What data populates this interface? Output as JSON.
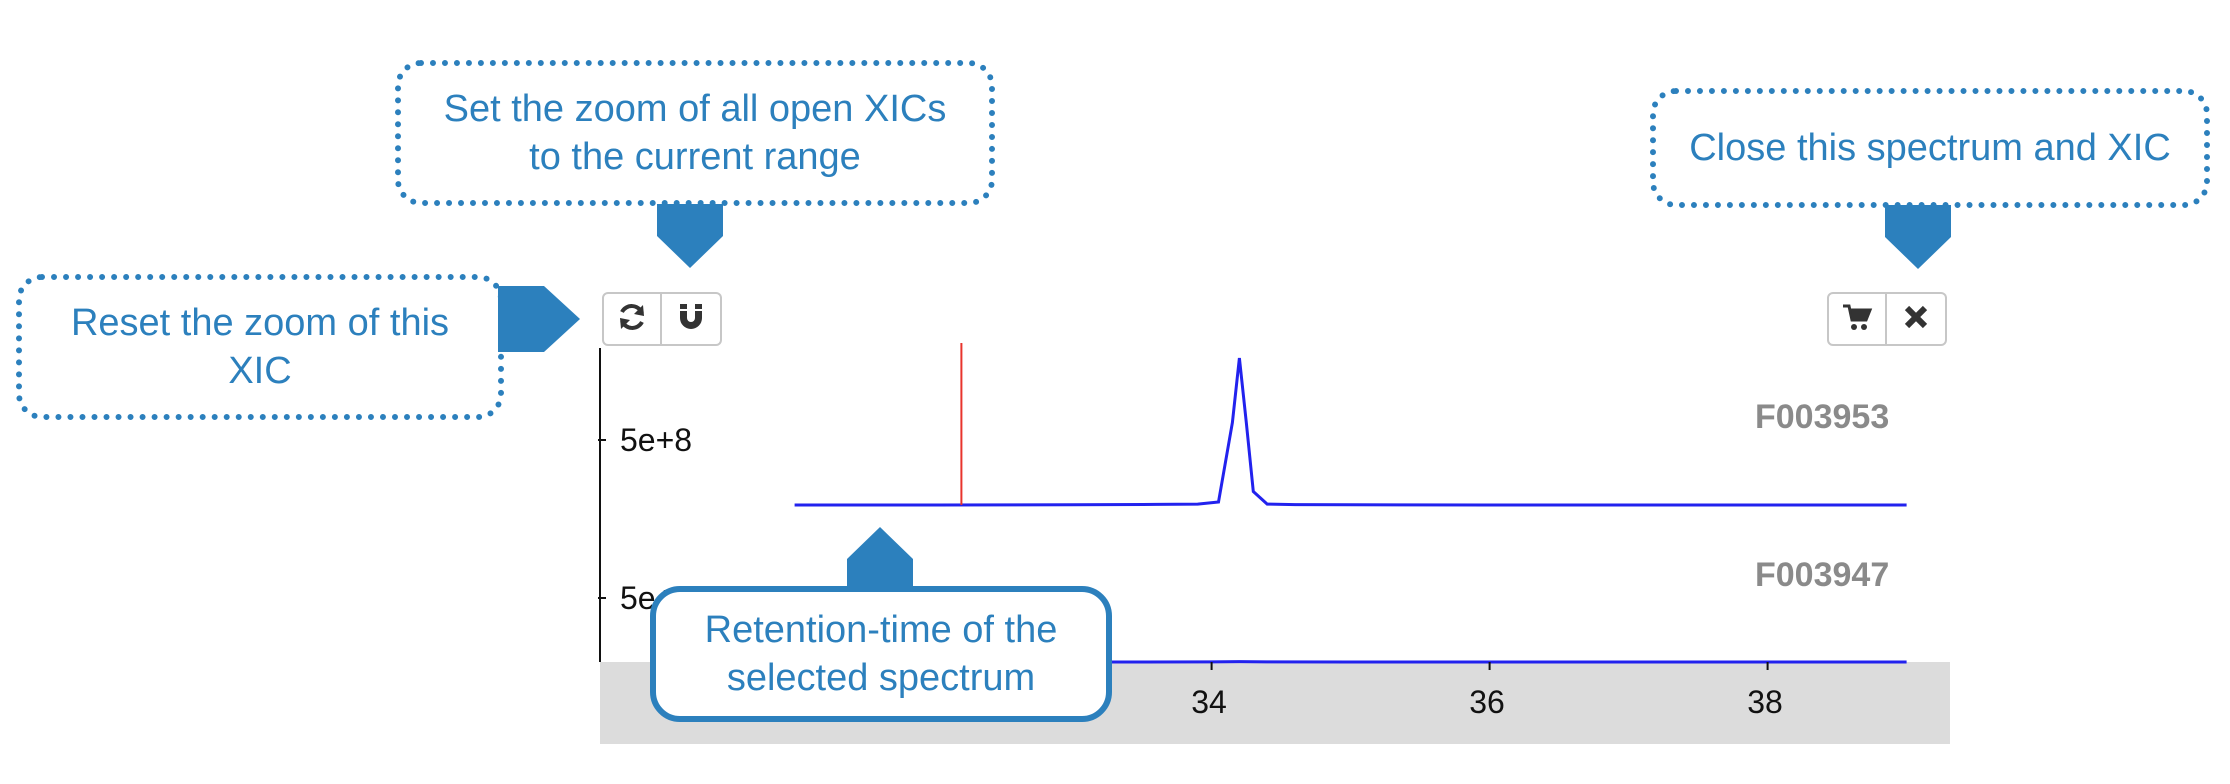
{
  "callouts": {
    "set_zoom_all": [
      "Set the zoom of all open XICs",
      "to the current range"
    ],
    "reset_zoom": [
      "Reset the zoom of this",
      "XIC"
    ],
    "close": [
      "Close this spectrum and XIC"
    ],
    "retention": [
      "Retention-time of the",
      "selected spectrum"
    ]
  },
  "toolbar": {
    "left_icons": [
      "refresh-icon",
      "magnet-icon"
    ],
    "right_icons": [
      "cart-icon",
      "close-icon"
    ]
  },
  "plots": [
    {
      "label": "F003953",
      "ytick": "5e+8"
    },
    {
      "label": "F003947",
      "ytick": "5e+8"
    }
  ],
  "x_axis": {
    "ticks": [
      "34",
      "36",
      "38"
    ]
  },
  "colors": {
    "callout": "#2c80bd",
    "trace": "#2222ee",
    "rt_marker": "#e8342c",
    "axis_band": "#dcdcdc"
  },
  "chart_data": {
    "type": "line",
    "x_ticks": [
      34,
      36,
      38
    ],
    "series": [
      {
        "name": "F003953",
        "x": [
          31.0,
          32.0,
          33.0,
          33.6,
          33.9,
          34.05,
          34.15,
          34.2,
          34.25,
          34.3,
          34.4,
          34.6,
          35.0,
          36.0,
          37.0,
          38.0,
          39.0
        ],
        "y": [
          0.0,
          0.0,
          2000000.0,
          4000000.0,
          6000000.0,
          20000000.0,
          550000000.0,
          980000000.0,
          550000000.0,
          90000000.0,
          6000000.0,
          3000000.0,
          1000000.0,
          0.0,
          0.0,
          0.0,
          0.0
        ]
      },
      {
        "name": "F003947",
        "x": [
          31.0,
          33.0,
          34.0,
          34.2,
          34.4,
          35.0,
          36.0,
          39.0
        ],
        "y": [
          0.0,
          0.0,
          1000000.0,
          3000000.0,
          1000000.0,
          0.0,
          0.0,
          0.0
        ]
      }
    ],
    "retention_time": 32.2
  }
}
